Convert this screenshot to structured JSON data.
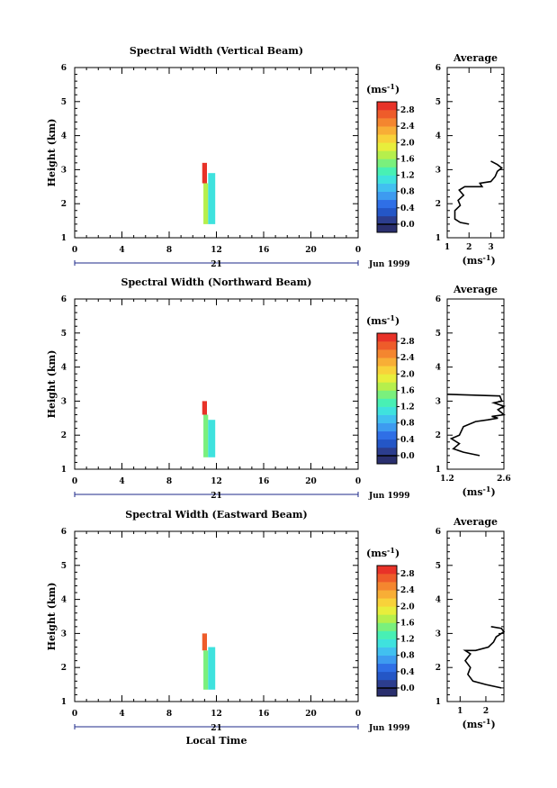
{
  "colors": {
    "scale": [
      "#2a2f6e",
      "#2c3d8e",
      "#2456c6",
      "#2f6fe6",
      "#3d9bf0",
      "#41c0f0",
      "#3fe2de",
      "#48f0b4",
      "#7af07d",
      "#b6ef4c",
      "#e8ee3c",
      "#f8d23a",
      "#f8ae36",
      "#f4862f",
      "#ee5c2a",
      "#e83228"
    ],
    "line": "#000000"
  },
  "chart_data": [
    {
      "type": "heatmap",
      "title": "Spectral Width (Vertical Beam)",
      "ylabel": "Height (km)",
      "xlabel": "",
      "x_ticks": [
        "0",
        "4",
        "8",
        "12",
        "16",
        "20",
        "0"
      ],
      "y_ticks": [
        "1",
        "2",
        "3",
        "4",
        "5",
        "6"
      ],
      "xlim": [
        0,
        24
      ],
      "ylim": [
        1,
        6
      ],
      "date_day": "21",
      "date_month": "Jun 1999",
      "colorbar": {
        "unit_prefix": "(ms",
        "unit_exp": "-1",
        "unit_suffix": ")",
        "ticks": [
          "0.0",
          "0.4",
          "0.8",
          "1.2",
          "1.6",
          "2.0",
          "2.4",
          "2.8"
        ],
        "range": [
          -0.2,
          3.0
        ]
      },
      "data_blocks": [
        {
          "x0": 10.8,
          "x1": 11.2,
          "y0": 2.6,
          "y1": 3.2,
          "value": 2.8
        },
        {
          "x0": 10.9,
          "x1": 11.3,
          "y0": 1.4,
          "y1": 2.6,
          "value": 1.6
        },
        {
          "x0": 11.3,
          "x1": 11.9,
          "y0": 1.4,
          "y1": 2.9,
          "value": 1.2
        }
      ],
      "average": {
        "title": "Average",
        "xlim": [
          1,
          3.6
        ],
        "x_ticks": [
          "1",
          "2",
          "3"
        ],
        "y_ticks": [
          "1",
          "2",
          "3",
          "4",
          "5",
          "6"
        ],
        "unit_prefix": "(ms",
        "unit_exp": "-1",
        "unit_suffix": ")",
        "profile": [
          [
            2.0,
            1.4
          ],
          [
            1.6,
            1.45
          ],
          [
            1.35,
            1.55
          ],
          [
            1.35,
            1.8
          ],
          [
            1.6,
            1.95
          ],
          [
            1.5,
            2.1
          ],
          [
            1.75,
            2.25
          ],
          [
            1.55,
            2.4
          ],
          [
            1.8,
            2.5
          ],
          [
            2.6,
            2.5
          ],
          [
            2.5,
            2.6
          ],
          [
            3.0,
            2.65
          ],
          [
            3.2,
            2.8
          ],
          [
            3.3,
            2.95
          ],
          [
            3.5,
            3.05
          ],
          [
            3.3,
            3.15
          ],
          [
            3.0,
            3.25
          ]
        ]
      }
    },
    {
      "type": "heatmap",
      "title": "Spectral Width (Northward Beam)",
      "ylabel": "Height (km)",
      "xlabel": "",
      "x_ticks": [
        "0",
        "4",
        "8",
        "12",
        "16",
        "20",
        "0"
      ],
      "y_ticks": [
        "1",
        "2",
        "3",
        "4",
        "5",
        "6"
      ],
      "xlim": [
        0,
        24
      ],
      "ylim": [
        1,
        6
      ],
      "date_day": "21",
      "date_month": "Jun 1999",
      "colorbar": {
        "unit_prefix": "(ms",
        "unit_exp": "-1",
        "unit_suffix": ")",
        "ticks": [
          "0.0",
          "0.4",
          "0.8",
          "1.2",
          "1.6",
          "2.0",
          "2.4",
          "2.8"
        ],
        "range": [
          -0.2,
          3.0
        ]
      },
      "data_blocks": [
        {
          "x0": 10.8,
          "x1": 11.2,
          "y0": 2.6,
          "y1": 3.0,
          "value": 2.8
        },
        {
          "x0": 10.9,
          "x1": 11.3,
          "y0": 1.35,
          "y1": 2.6,
          "value": 1.5
        },
        {
          "x0": 11.3,
          "x1": 11.9,
          "y0": 1.35,
          "y1": 2.45,
          "value": 1.2
        }
      ],
      "average": {
        "title": "Average",
        "xlim": [
          1.2,
          2.6
        ],
        "x_ticks": [
          "1.2",
          "2.6"
        ],
        "y_ticks": [
          "1",
          "2",
          "3",
          "4",
          "5",
          "6"
        ],
        "unit_prefix": "(ms",
        "unit_exp": "-1",
        "unit_suffix": ")",
        "profile": [
          [
            2.0,
            1.4
          ],
          [
            1.6,
            1.5
          ],
          [
            1.35,
            1.6
          ],
          [
            1.5,
            1.75
          ],
          [
            1.3,
            1.9
          ],
          [
            1.5,
            2.0
          ],
          [
            1.6,
            2.25
          ],
          [
            1.9,
            2.4
          ],
          [
            2.2,
            2.45
          ],
          [
            2.45,
            2.5
          ],
          [
            2.3,
            2.55
          ],
          [
            2.6,
            2.6
          ],
          [
            2.45,
            2.75
          ],
          [
            2.6,
            2.85
          ],
          [
            2.35,
            2.95
          ],
          [
            2.55,
            3.0
          ],
          [
            2.5,
            3.15
          ],
          [
            1.2,
            3.2
          ]
        ]
      }
    },
    {
      "type": "heatmap",
      "title": "Spectral Width (Eastward Beam)",
      "ylabel": "Height (km)",
      "xlabel": "Local Time",
      "x_ticks": [
        "0",
        "4",
        "8",
        "12",
        "16",
        "20",
        "0"
      ],
      "y_ticks": [
        "1",
        "2",
        "3",
        "4",
        "5",
        "6"
      ],
      "xlim": [
        0,
        24
      ],
      "ylim": [
        1,
        6
      ],
      "date_day": "21",
      "date_month": "Jun 1999",
      "colorbar": {
        "unit_prefix": "(ms",
        "unit_exp": "-1",
        "unit_suffix": ")",
        "ticks": [
          "0.0",
          "0.4",
          "0.8",
          "1.2",
          "1.6",
          "2.0",
          "2.4",
          "2.8"
        ],
        "range": [
          -0.2,
          3.0
        ]
      },
      "data_blocks": [
        {
          "x0": 10.8,
          "x1": 11.2,
          "y0": 2.5,
          "y1": 3.0,
          "value": 2.6
        },
        {
          "x0": 10.9,
          "x1": 11.3,
          "y0": 1.35,
          "y1": 2.5,
          "value": 1.5
        },
        {
          "x0": 11.3,
          "x1": 11.9,
          "y0": 1.35,
          "y1": 2.6,
          "value": 1.1
        }
      ],
      "average": {
        "title": "Average",
        "xlim": [
          0.5,
          2.7
        ],
        "x_ticks": [
          "1",
          "2"
        ],
        "y_ticks": [
          "1",
          "2",
          "3",
          "4",
          "5",
          "6"
        ],
        "unit_prefix": "(ms",
        "unit_exp": "-1",
        "unit_suffix": ")",
        "profile": [
          [
            2.6,
            1.4
          ],
          [
            2.0,
            1.5
          ],
          [
            1.5,
            1.6
          ],
          [
            1.3,
            1.8
          ],
          [
            1.4,
            2.0
          ],
          [
            1.2,
            2.2
          ],
          [
            1.4,
            2.4
          ],
          [
            1.2,
            2.5
          ],
          [
            1.6,
            2.5
          ],
          [
            2.1,
            2.6
          ],
          [
            2.3,
            2.75
          ],
          [
            2.4,
            2.9
          ],
          [
            2.7,
            3.05
          ],
          [
            2.6,
            3.15
          ],
          [
            2.2,
            3.2
          ]
        ]
      }
    }
  ]
}
